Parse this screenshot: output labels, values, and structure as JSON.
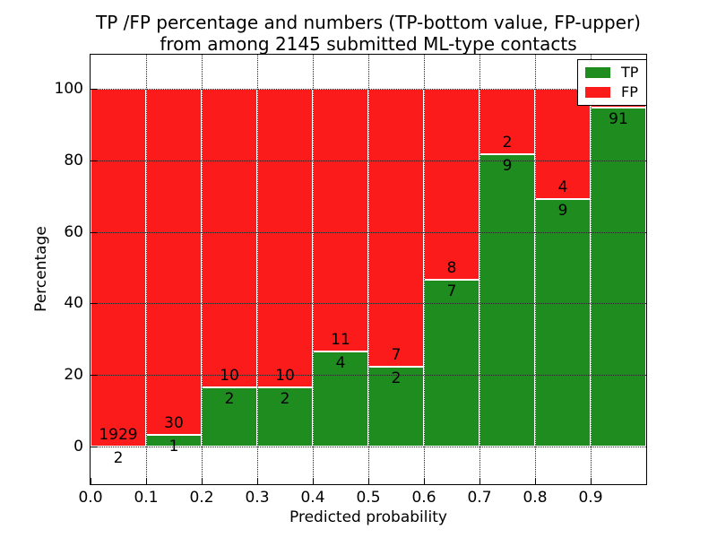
{
  "figure": {
    "title_line1": "TP /FP percentage and numbers (TP-bottom value, FP-upper)",
    "title_line2": "from among 2145 submitted ML-type contacts"
  },
  "chart_data": {
    "type": "bar",
    "stacked": true,
    "title": "TP /FP percentage and numbers (TP-bottom value, FP-upper) from among 2145 submitted ML-type contacts",
    "xlabel": "Predicted probability",
    "ylabel": "Percentage",
    "total_contacts": 2145,
    "xlim": [
      0.0,
      1.0
    ],
    "ylim": [
      -10,
      110
    ],
    "grid": "dotted-black-over-bars",
    "bar_edge_color": "#ffffff",
    "x_ticks": [
      0.0,
      0.1,
      0.2,
      0.3,
      0.4,
      0.5,
      0.6,
      0.7,
      0.8,
      0.9
    ],
    "x_tick_labels": [
      "0.0",
      "0.1",
      "0.2",
      "0.3",
      "0.4",
      "0.5",
      "0.6",
      "0.7",
      "0.8",
      "0.9"
    ],
    "y_ticks": [
      0,
      20,
      40,
      60,
      80,
      100
    ],
    "y_tick_labels": [
      "0",
      "20",
      "40",
      "60",
      "80",
      "100"
    ],
    "colors": {
      "tp": "#1e8c1e",
      "fp": "#fb1b1b"
    },
    "legend": {
      "position": "upper right",
      "entries": [
        {
          "label": "TP",
          "color": "#1e8c1e"
        },
        {
          "label": "FP",
          "color": "#fb1b1b"
        }
      ]
    },
    "annotation_note": "FP count printed above each TP/FP boundary, TP count below it",
    "bins": [
      {
        "x_start": 0.0,
        "x_end": 0.1,
        "tp": 2,
        "fp": 1929,
        "tp_pct": 0.1,
        "fp_label_visible": true
      },
      {
        "x_start": 0.1,
        "x_end": 0.2,
        "tp": 1,
        "fp": 30,
        "tp_pct": 3.2,
        "fp_label_visible": true
      },
      {
        "x_start": 0.2,
        "x_end": 0.3,
        "tp": 2,
        "fp": 10,
        "tp_pct": 16.7,
        "fp_label_visible": true
      },
      {
        "x_start": 0.3,
        "x_end": 0.4,
        "tp": 2,
        "fp": 10,
        "tp_pct": 16.7,
        "fp_label_visible": true
      },
      {
        "x_start": 0.4,
        "x_end": 0.5,
        "tp": 4,
        "fp": 11,
        "tp_pct": 26.7,
        "fp_label_visible": true
      },
      {
        "x_start": 0.5,
        "x_end": 0.6,
        "tp": 2,
        "fp": 7,
        "tp_pct": 22.2,
        "fp_label_visible": true
      },
      {
        "x_start": 0.6,
        "x_end": 0.7,
        "tp": 7,
        "fp": 8,
        "tp_pct": 46.7,
        "fp_label_visible": true
      },
      {
        "x_start": 0.7,
        "x_end": 0.8,
        "tp": 9,
        "fp": 2,
        "tp_pct": 81.8,
        "fp_label_visible": true
      },
      {
        "x_start": 0.8,
        "x_end": 0.9,
        "tp": 9,
        "fp": 4,
        "tp_pct": 69.2,
        "fp_label_visible": true
      },
      {
        "x_start": 0.9,
        "x_end": 1.0,
        "tp": 91,
        "fp": 5,
        "tp_pct": 94.8,
        "fp_label_visible": false
      }
    ]
  }
}
